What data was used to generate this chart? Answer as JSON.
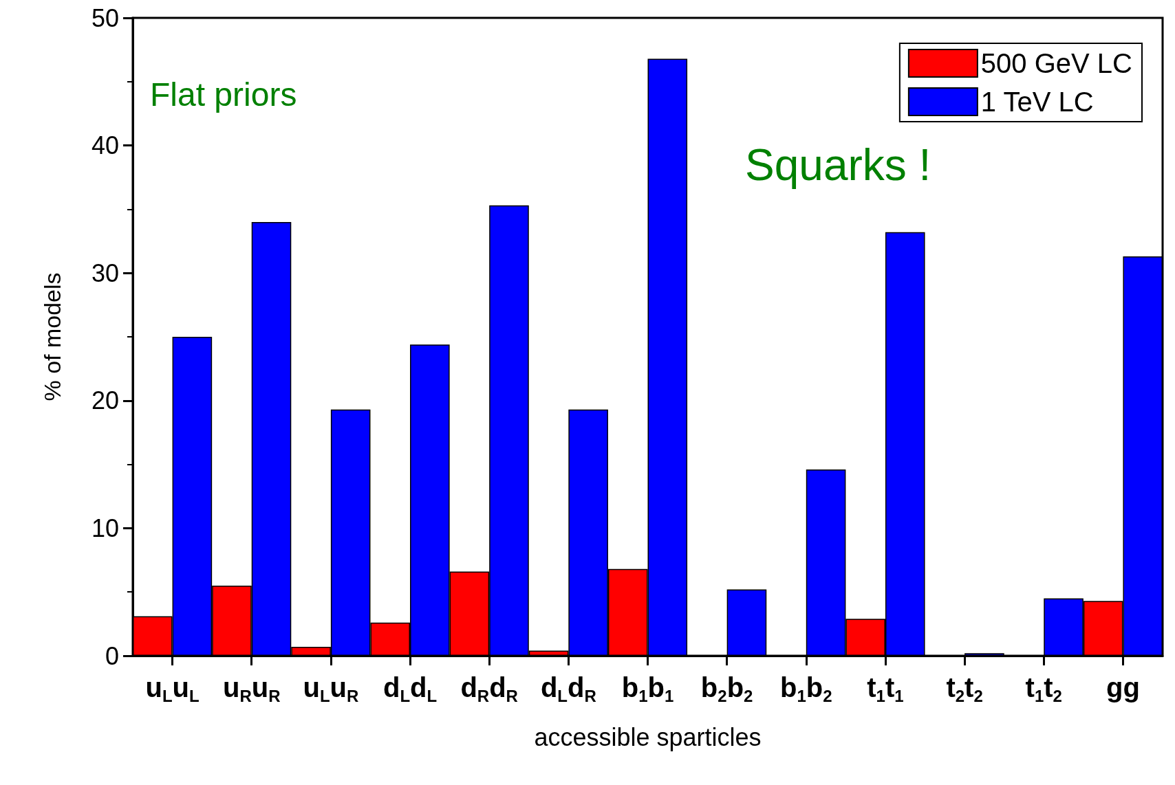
{
  "chart_data": {
    "type": "bar",
    "xlabel": "accessible sparticles",
    "ylabel": "% of models",
    "categories": [
      "u$_{L}$u$_{L}$",
      "u$_{R}$u$_{R}$",
      "u$_{L}$u$_{R}$",
      "d$_{L}$d$_{L}$",
      "d$_{R}$d$_{R}$",
      "d$_{L}$d$_{R}$",
      "b$_{1}$b$_{1}$",
      "b$_{2}$b$_{2}$",
      "b$_{1}$b$_{2}$",
      "t$_{1}$t$_{1}$",
      "t$_{2}$t$_{2}$",
      "t$_{1}$t$_{2}$",
      "gg"
    ],
    "series": [
      {
        "name": "500 GeV LC",
        "color": "#ff0000",
        "values": [
          3.1,
          5.5,
          0.7,
          2.6,
          6.6,
          0.4,
          6.8,
          0,
          0,
          2.9,
          0,
          0,
          4.3
        ]
      },
      {
        "name": "1 TeV LC",
        "color": "#0000ff",
        "values": [
          25.0,
          34.0,
          19.3,
          24.4,
          35.3,
          19.3,
          46.8,
          5.2,
          14.6,
          33.2,
          0.2,
          4.5,
          31.3
        ]
      }
    ],
    "ylim": [
      0,
      50
    ],
    "yticks": [
      0,
      10,
      20,
      30,
      40,
      50
    ],
    "grid": false,
    "legend": "top right",
    "annotations": [
      "Flat priors",
      "Squarks !"
    ]
  }
}
